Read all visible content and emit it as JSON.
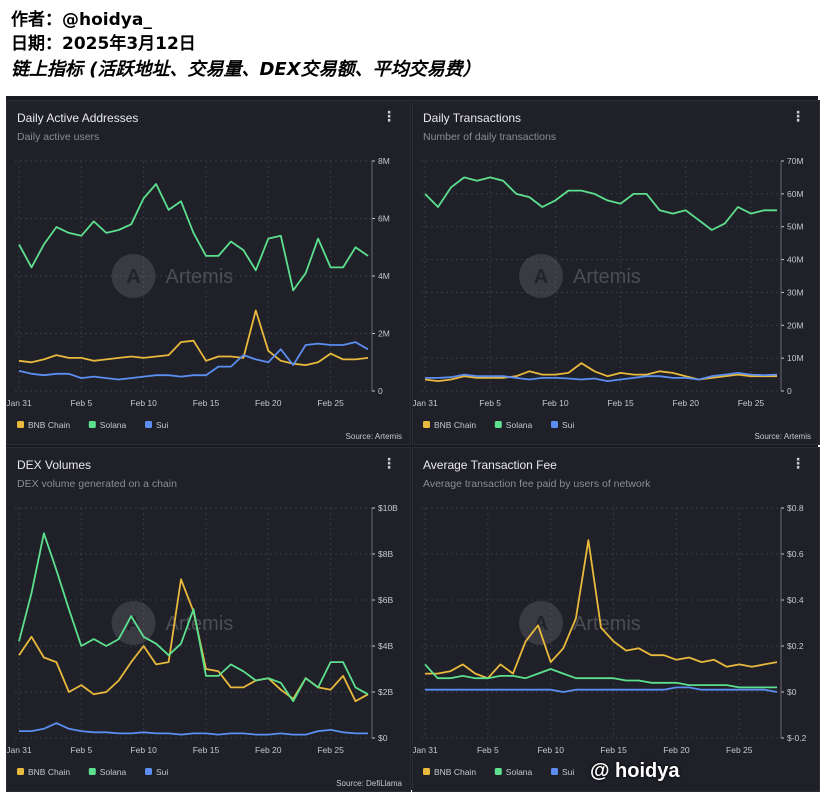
{
  "header": {
    "author": "作者：@hoidya_",
    "date": "日期：2025年3月12日",
    "subtitle": "链上指标 (活跃地址、交易量、DEX交易额、平均交易费）"
  },
  "watermark_text": "Artemis",
  "footer_watermark": "@ hoidya",
  "colors": {
    "bnb": "#e8b93c",
    "solana": "#5ce08e",
    "sui": "#5b8ef0",
    "grid": "#3a3b45",
    "axis_text": "#c7c7cf"
  },
  "legend": [
    "BNB Chain",
    "Solana",
    "Sui"
  ],
  "chart_data": [
    {
      "id": "daa",
      "type": "line",
      "title": "Daily Active Addresses",
      "subtitle": "Daily active users",
      "source": "Source: Artemis",
      "x_ticks": [
        "Jan 31",
        "Feb 5",
        "Feb 10",
        "Feb 15",
        "Feb 20",
        "Feb 25"
      ],
      "x_tick_index": [
        0,
        5,
        10,
        15,
        20,
        25
      ],
      "y_ticks": [
        "0",
        "2M",
        "4M",
        "6M",
        "8M"
      ],
      "ylim": [
        0,
        8
      ],
      "series": [
        {
          "name": "BNB Chain",
          "color": "#e8b93c",
          "values": [
            1.05,
            1.0,
            1.1,
            1.25,
            1.15,
            1.15,
            1.05,
            1.1,
            1.15,
            1.2,
            1.15,
            1.2,
            1.25,
            1.7,
            1.75,
            1.05,
            1.2,
            1.2,
            1.15,
            2.8,
            1.4,
            1.05,
            0.95,
            0.9,
            1.0,
            1.3,
            1.1,
            1.1,
            1.15
          ]
        },
        {
          "name": "Solana",
          "color": "#5ce08e",
          "values": [
            5.1,
            4.3,
            5.1,
            5.7,
            5.5,
            5.4,
            5.9,
            5.5,
            5.6,
            5.8,
            6.7,
            7.2,
            6.3,
            6.6,
            5.5,
            4.7,
            4.7,
            5.2,
            4.9,
            4.2,
            5.3,
            5.4,
            3.5,
            4.1,
            5.3,
            4.3,
            4.3,
            5.0,
            4.7
          ]
        },
        {
          "name": "Sui",
          "color": "#5b8ef0",
          "values": [
            0.7,
            0.6,
            0.55,
            0.6,
            0.6,
            0.45,
            0.5,
            0.45,
            0.4,
            0.45,
            0.5,
            0.55,
            0.55,
            0.5,
            0.55,
            0.55,
            0.85,
            0.85,
            1.25,
            1.1,
            1.0,
            1.45,
            0.9,
            1.6,
            1.65,
            1.6,
            1.6,
            1.7,
            1.45
          ]
        }
      ]
    },
    {
      "id": "dtx",
      "type": "line",
      "title": "Daily Transactions",
      "subtitle": "Number of daily transactions",
      "source": "Source: Artemis",
      "x_ticks": [
        "Jan 31",
        "Feb 5",
        "Feb 10",
        "Feb 15",
        "Feb 20",
        "Feb 25"
      ],
      "x_tick_index": [
        0,
        5,
        10,
        15,
        20,
        25
      ],
      "y_ticks": [
        "0",
        "10M",
        "20M",
        "30M",
        "40M",
        "50M",
        "60M",
        "70M"
      ],
      "ylim": [
        0,
        70
      ],
      "series": [
        {
          "name": "BNB Chain",
          "color": "#e8b93c",
          "values": [
            3.5,
            3.0,
            3.5,
            4.5,
            4.0,
            4.0,
            4.0,
            4.5,
            6.0,
            5.0,
            5.0,
            5.5,
            8.5,
            6.0,
            4.5,
            5.5,
            5.0,
            5.0,
            6.0,
            5.5,
            4.5,
            3.5,
            4.0,
            4.5,
            5.0,
            4.5,
            4.5,
            4.5
          ]
        },
        {
          "name": "Solana",
          "color": "#5ce08e",
          "values": [
            60,
            56,
            62,
            65,
            64,
            65,
            64,
            60,
            59,
            56,
            58,
            61,
            61,
            60,
            58,
            57,
            60,
            60,
            55,
            54,
            55,
            52,
            49,
            51,
            56,
            54,
            55,
            55
          ]
        },
        {
          "name": "Sui",
          "color": "#5b8ef0",
          "values": [
            4.0,
            4.0,
            4.2,
            5.0,
            4.5,
            4.5,
            4.5,
            4.0,
            3.5,
            4.0,
            4.0,
            3.8,
            3.5,
            3.8,
            3.0,
            3.5,
            4.0,
            4.5,
            4.5,
            4.0,
            4.0,
            3.5,
            4.5,
            5.0,
            5.5,
            5.0,
            4.8,
            5.0
          ]
        }
      ]
    },
    {
      "id": "dex",
      "type": "line",
      "title": "DEX Volumes",
      "subtitle": "DEX volume generated on a chain",
      "source": "Source: DefiLlama",
      "x_ticks": [
        "Jan 31",
        "Feb 5",
        "Feb 10",
        "Feb 15",
        "Feb 20",
        "Feb 25"
      ],
      "x_tick_index": [
        0,
        5,
        10,
        15,
        20,
        25
      ],
      "y_ticks": [
        "$0",
        "$2B",
        "$4B",
        "$6B",
        "$8B",
        "$10B"
      ],
      "ylim": [
        0,
        10
      ],
      "series": [
        {
          "name": "BNB Chain",
          "color": "#e8b93c",
          "values": [
            3.6,
            4.4,
            3.5,
            3.3,
            2.0,
            2.3,
            1.9,
            2.0,
            2.5,
            3.3,
            4.0,
            3.2,
            3.3,
            6.9,
            5.5,
            3.0,
            2.9,
            2.2,
            2.2,
            2.5,
            2.6,
            2.1,
            1.7,
            2.6,
            2.2,
            2.1,
            2.7,
            1.6,
            1.9
          ]
        },
        {
          "name": "Solana",
          "color": "#5ce08e",
          "values": [
            4.2,
            6.3,
            8.9,
            7.3,
            5.6,
            4.0,
            4.3,
            4.0,
            4.3,
            5.3,
            4.4,
            4.1,
            3.6,
            4.1,
            5.6,
            2.7,
            2.7,
            3.2,
            2.9,
            2.5,
            2.6,
            2.4,
            1.6,
            2.6,
            2.2,
            3.3,
            3.3,
            2.2,
            1.9
          ]
        },
        {
          "name": "Sui",
          "color": "#5b8ef0",
          "values": [
            0.3,
            0.3,
            0.4,
            0.65,
            0.4,
            0.3,
            0.25,
            0.25,
            0.2,
            0.2,
            0.25,
            0.2,
            0.2,
            0.15,
            0.2,
            0.2,
            0.15,
            0.2,
            0.2,
            0.15,
            0.15,
            0.2,
            0.15,
            0.15,
            0.3,
            0.35,
            0.25,
            0.2,
            0.2
          ]
        }
      ]
    },
    {
      "id": "fee",
      "type": "line",
      "title": "Average Transaction Fee",
      "subtitle": "Average transaction fee paid by users of network",
      "source": "",
      "x_ticks": [
        "Jan 31",
        "Feb 5",
        "Feb 10",
        "Feb 15",
        "Feb 20",
        "Feb 25"
      ],
      "x_tick_index": [
        0,
        5,
        10,
        15,
        20,
        25
      ],
      "y_ticks": [
        "$-0.2",
        "$0",
        "$0.2",
        "$0.4",
        "$0.6",
        "$0.8"
      ],
      "ylim": [
        -0.2,
        0.8
      ],
      "series": [
        {
          "name": "BNB Chain",
          "color": "#e8b93c",
          "values": [
            0.08,
            0.08,
            0.09,
            0.12,
            0.08,
            0.06,
            0.12,
            0.08,
            0.22,
            0.29,
            0.13,
            0.19,
            0.32,
            0.66,
            0.28,
            0.22,
            0.18,
            0.19,
            0.16,
            0.16,
            0.14,
            0.15,
            0.13,
            0.14,
            0.11,
            0.12,
            0.11,
            0.12,
            0.13
          ]
        },
        {
          "name": "Solana",
          "color": "#5ce08e",
          "values": [
            0.12,
            0.06,
            0.06,
            0.07,
            0.06,
            0.06,
            0.07,
            0.07,
            0.06,
            0.08,
            0.1,
            0.08,
            0.06,
            0.06,
            0.06,
            0.06,
            0.05,
            0.05,
            0.04,
            0.04,
            0.04,
            0.03,
            0.03,
            0.03,
            0.03,
            0.02,
            0.02,
            0.02,
            0.02
          ]
        },
        {
          "name": "Sui",
          "color": "#5b8ef0",
          "values": [
            0.01,
            0.01,
            0.01,
            0.01,
            0.01,
            0.01,
            0.01,
            0.01,
            0.01,
            0.01,
            0.01,
            0.0,
            0.01,
            0.01,
            0.01,
            0.01,
            0.01,
            0.01,
            0.01,
            0.01,
            0.02,
            0.02,
            0.01,
            0.01,
            0.01,
            0.01,
            0.01,
            0.01,
            0.0
          ]
        }
      ]
    }
  ]
}
